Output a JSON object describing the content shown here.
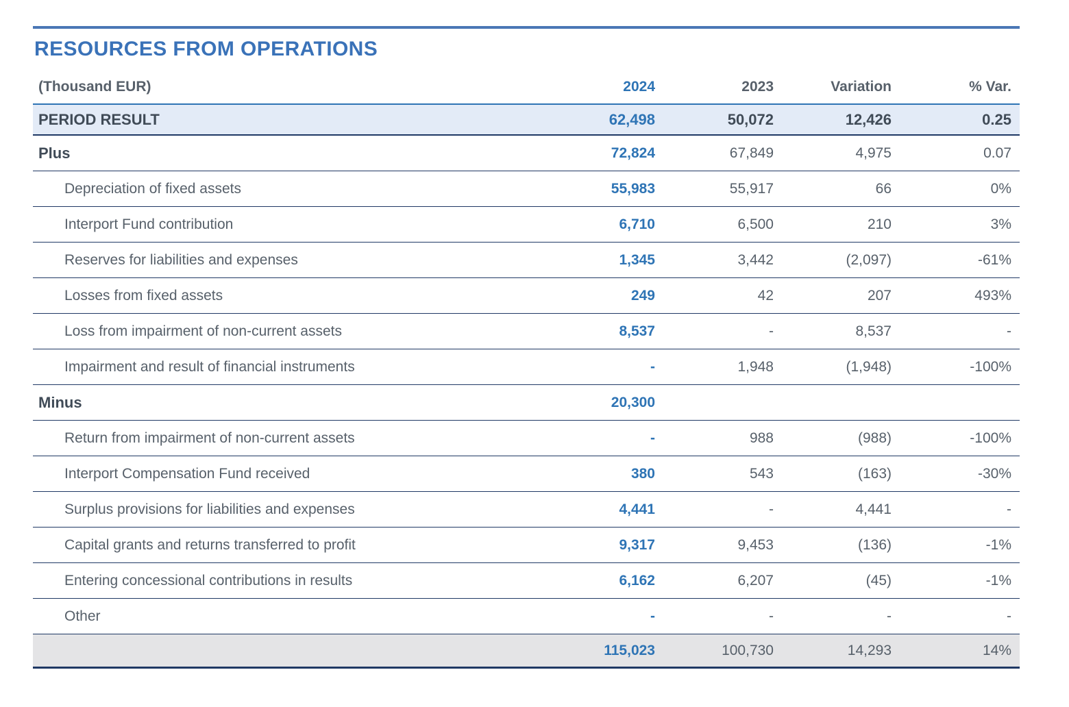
{
  "title": "RESOURCES FROM OPERATIONS",
  "table": {
    "unit_label": "(Thousand EUR)",
    "columns": [
      "2024",
      "2023",
      "Variation",
      "% Var."
    ],
    "rows": [
      {
        "label": "PERIOD RESULT",
        "style": "period",
        "values": [
          "62,498",
          "50,072",
          "12,426",
          "0.25"
        ]
      },
      {
        "label": "Plus",
        "style": "section",
        "values": [
          "72,824",
          "67,849",
          "4,975",
          "0.07"
        ]
      },
      {
        "label": "Depreciation of fixed assets",
        "style": "sub",
        "values": [
          "55,983",
          "55,917",
          "66",
          "0%"
        ]
      },
      {
        "label": "Interport Fund contribution",
        "style": "sub",
        "values": [
          "6,710",
          "6,500",
          "210",
          "3%"
        ]
      },
      {
        "label": "Reserves for liabilities and expenses",
        "style": "sub",
        "values": [
          "1,345",
          "3,442",
          "(2,097)",
          "-61%"
        ]
      },
      {
        "label": "Losses from fixed assets",
        "style": "sub",
        "values": [
          "249",
          "42",
          "207",
          "493%"
        ]
      },
      {
        "label": "Loss from impairment of non-current assets",
        "style": "sub",
        "values": [
          "8,537",
          "-",
          "8,537",
          "-"
        ]
      },
      {
        "label": "Impairment and result of financial instruments",
        "style": "sub",
        "values": [
          "-",
          "1,948",
          "(1,948)",
          "-100%"
        ]
      },
      {
        "label": "Minus",
        "style": "section",
        "values": [
          "20,300",
          "",
          "",
          ""
        ]
      },
      {
        "label": "Return from impairment of non-current assets",
        "style": "sub",
        "values": [
          "-",
          "988",
          "(988)",
          "-100%"
        ]
      },
      {
        "label": "Interport Compensation Fund received",
        "style": "sub",
        "values": [
          "380",
          "543",
          "(163)",
          "-30%"
        ]
      },
      {
        "label": "Surplus provisions for liabilities and expenses",
        "style": "sub",
        "values": [
          "4,441",
          "-",
          "4,441",
          "-"
        ]
      },
      {
        "label": "Capital grants and returns transferred to profit",
        "style": "sub",
        "values": [
          "9,317",
          "9,453",
          "(136)",
          "-1%"
        ]
      },
      {
        "label": "Entering concessional contributions in results",
        "style": "sub",
        "values": [
          "6,162",
          "6,207",
          "(45)",
          "-1%"
        ]
      },
      {
        "label": "Other",
        "style": "sub",
        "values": [
          "-",
          "-",
          "-",
          "-"
        ]
      },
      {
        "label": "",
        "style": "total",
        "values": [
          "115,023",
          "100,730",
          "14,293",
          "14%"
        ]
      }
    ]
  },
  "colors": {
    "accent_blue": "#2e74b5",
    "title_blue": "#3a72b8",
    "rule_blue": "#4a77b5",
    "navy_border": "#1f3864",
    "period_row_bg": "#e3ebf7",
    "total_row_bg": "#e4e4e6",
    "text_dark": "#404b57",
    "text_regular": "#57606a"
  }
}
